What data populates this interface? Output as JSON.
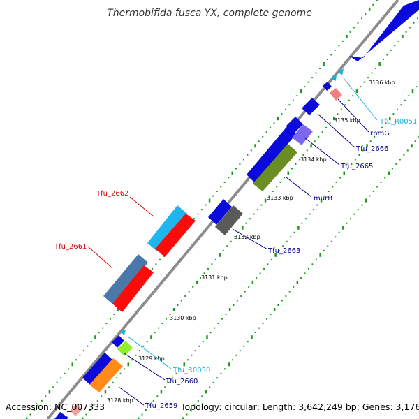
{
  "title": "Thermobifida fusca YX, complete genome",
  "footer": {
    "accession": "Accession: NC_007333",
    "topology": "Topology: circular; Length: 3,642,249 bp; Genes: 3,176"
  },
  "colors": {
    "backbone": "#999999",
    "forward_dots": "#1e9a1e",
    "blue_gene": "#0a0adc",
    "label_blue": "#00008b",
    "label_red": "#cc0000",
    "label_cyan": "#1ab2dd"
  },
  "ticks": [
    "3128 kbp",
    "3129 kbp",
    "3130 kbp",
    "3131 kbp",
    "3132 kbp",
    "3133 kbp",
    "3134 kbp",
    "3135 kbp",
    "3136 kbp"
  ],
  "gene_labels": [
    {
      "text": "Tfu_R0051",
      "color": "cyan"
    },
    {
      "text": "rpmG",
      "color": "blue"
    },
    {
      "text": "Tfu_2666",
      "color": "blue"
    },
    {
      "text": "Tfu_2665",
      "color": "blue"
    },
    {
      "text": "murB",
      "color": "blue"
    },
    {
      "text": "Tfu_2663",
      "color": "blue"
    },
    {
      "text": "Tfu_2662",
      "color": "red"
    },
    {
      "text": "Tfu_2661",
      "color": "red"
    },
    {
      "text": "Tfu_R0050",
      "color": "cyan"
    },
    {
      "text": "Tfu_2660",
      "color": "blue"
    },
    {
      "text": "Tfu_2659",
      "color": "blue"
    }
  ]
}
